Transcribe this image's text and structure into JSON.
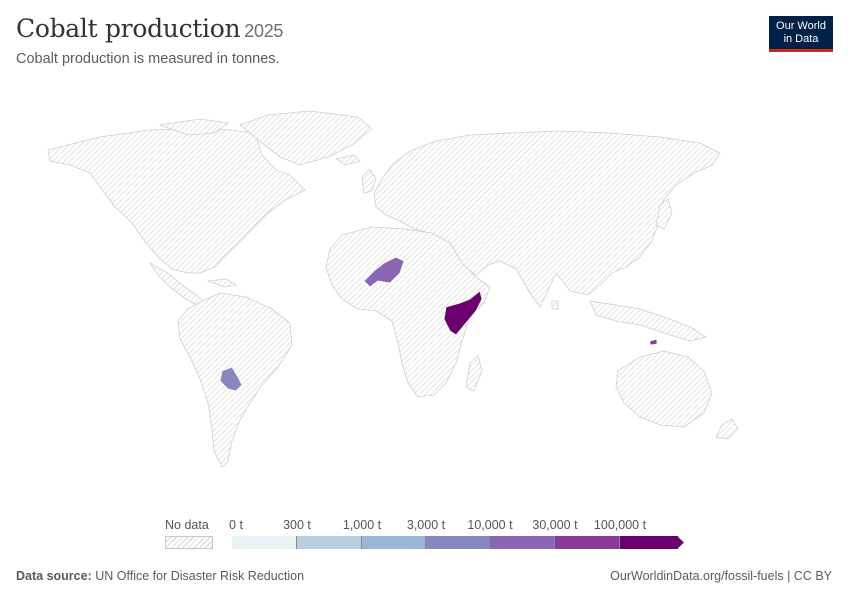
{
  "header": {
    "title": "Cobalt production",
    "year": "2025",
    "subtitle": "Cobalt production is measured in tonnes."
  },
  "logo": {
    "line1": "Our World",
    "line2": "in Data"
  },
  "map": {
    "highlighted_regions": [
      {
        "name": "Niger",
        "bin": 4,
        "color": "#8a66b4"
      },
      {
        "name": "Somalia",
        "bin": 6,
        "color": "#6a006e"
      },
      {
        "name": "Paraguay",
        "bin": 3,
        "color": "#8887bf"
      },
      {
        "name": "Timor-Leste",
        "bin": 5,
        "color": "#8b3a9a"
      }
    ],
    "no_data_fill": "hatched-grey"
  },
  "legend": {
    "no_data_label": "No data",
    "ticks": [
      "0 t",
      "300 t",
      "1,000 t",
      "3,000 t",
      "10,000 t",
      "30,000 t",
      "100,000 t"
    ],
    "bin_colors": [
      "#e8f3f5",
      "#b9cfdf",
      "#9ab6d6",
      "#8887bf",
      "#8a66b4",
      "#8b3a9a",
      "#6a006e"
    ]
  },
  "footer": {
    "source_label": "Data source:",
    "source_text": "UN Office for Disaster Risk Reduction",
    "url_text": "OurWorldinData.org/fossil-fuels | CC BY"
  }
}
